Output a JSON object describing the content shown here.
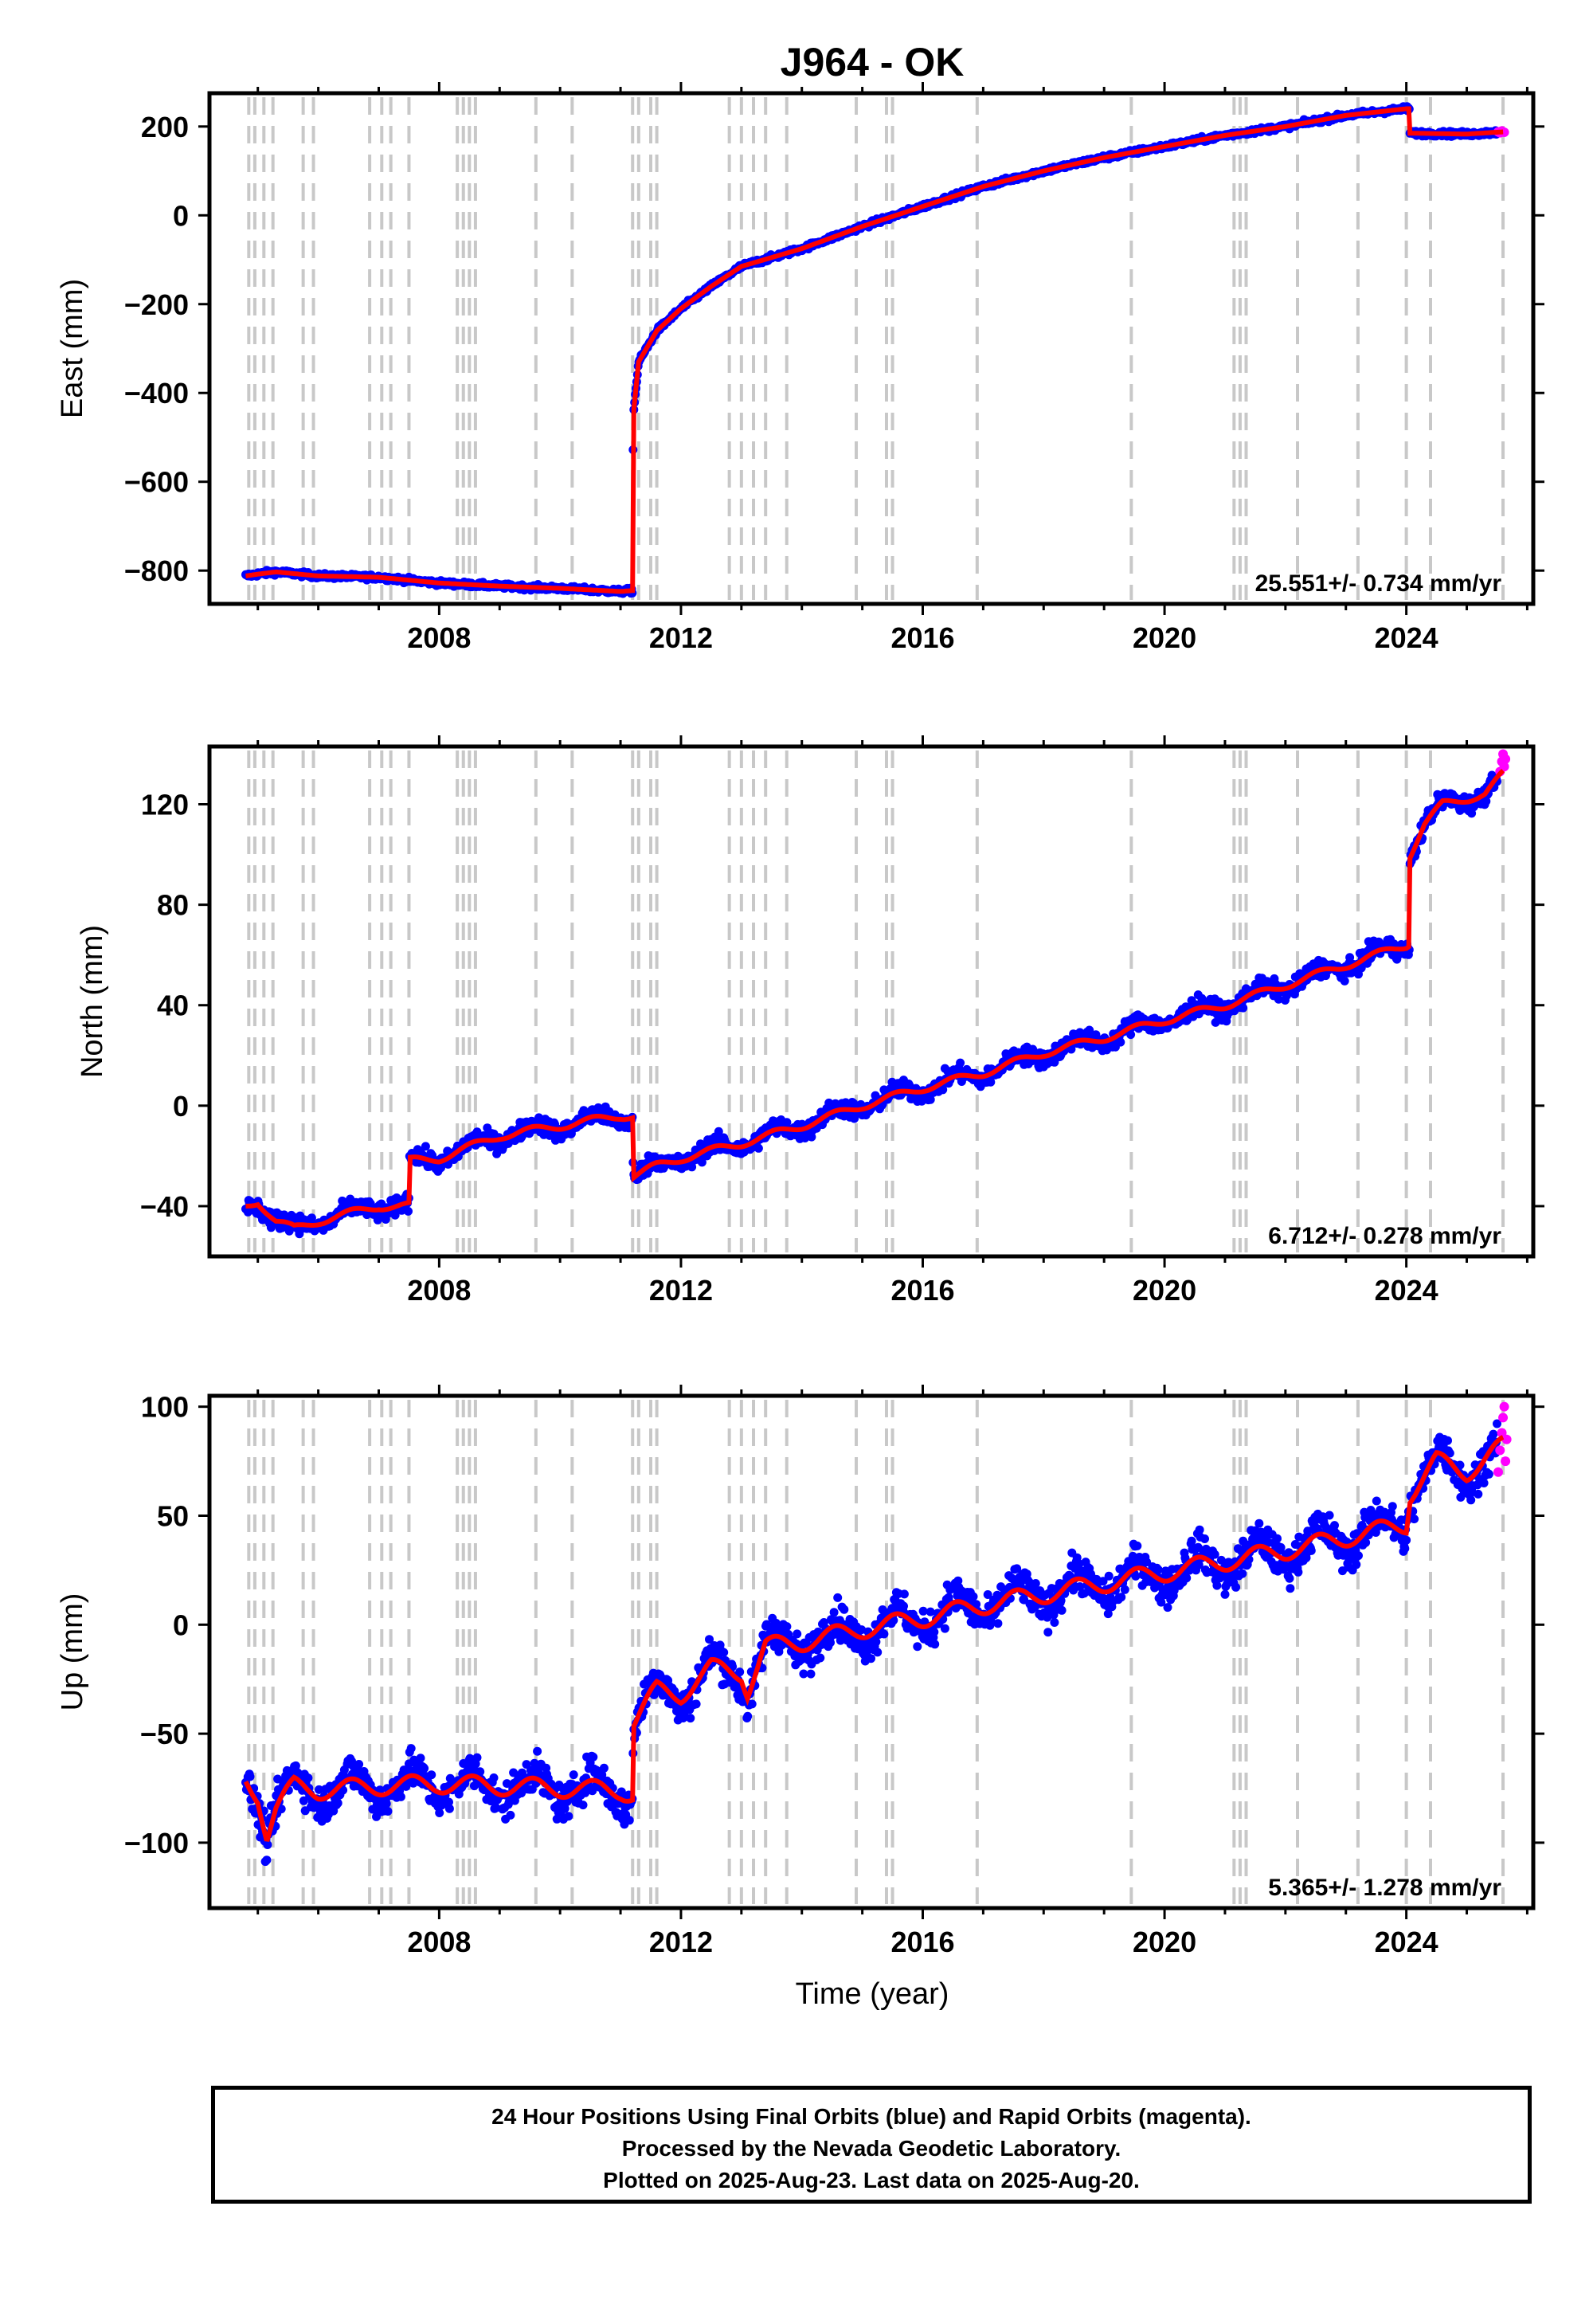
{
  "title": "J964 - OK",
  "xlabel": "Time (year)",
  "footer": {
    "line1": "24 Hour Positions Using Final Orbits (blue) and Rapid Orbits (magenta).",
    "line2": "Processed by the Nevada Geodetic Laboratory.",
    "line3": "Plotted on 2025-Aug-23. Last data on 2025-Aug-20."
  },
  "colors": {
    "final": "#0000ff",
    "rapid": "#ff00ff",
    "model": "#ff0000",
    "eventLine": "#c8c8c8"
  },
  "chart_data": {
    "type": "scatter",
    "x_range": [
      2004.2,
      2026.1
    ],
    "x_ticks": [
      2008,
      2012,
      2016,
      2020,
      2024
    ],
    "event_lines": [
      2004.85,
      2004.95,
      2005.1,
      2005.25,
      2005.75,
      2005.92,
      2006.85,
      2007.05,
      2007.2,
      2007.5,
      2008.3,
      2008.4,
      2008.5,
      2008.6,
      2009.6,
      2010.2,
      2011.2,
      2011.3,
      2011.5,
      2011.6,
      2012.8,
      2013.0,
      2013.2,
      2013.4,
      2013.75,
      2014.9,
      2015.4,
      2015.5,
      2016.9,
      2019.45,
      2021.15,
      2021.25,
      2021.35,
      2022.2,
      2023.2,
      2024.0,
      2024.4,
      2025.6
    ],
    "panels": [
      {
        "name": "east",
        "ylabel": "East (mm)",
        "ylim": [
          -875,
          275
        ],
        "y_ticks": [
          -800,
          -600,
          -400,
          -200,
          0,
          200
        ],
        "rate": "25.551+/- 0.734 mm/yr",
        "noise": 4,
        "model": [
          [
            2004.8,
            -812
          ],
          [
            2005.0,
            -808
          ],
          [
            2005.3,
            -803
          ],
          [
            2006.0,
            -812
          ],
          [
            2007.0,
            -815
          ],
          [
            2008.0,
            -828
          ],
          [
            2009.0,
            -835
          ],
          [
            2010.0,
            -840
          ],
          [
            2011.0,
            -847
          ],
          [
            2011.2,
            -845
          ],
          [
            2011.21,
            -450
          ],
          [
            2011.3,
            -330
          ],
          [
            2011.6,
            -260
          ],
          [
            2012.0,
            -210
          ],
          [
            2012.5,
            -160
          ],
          [
            2013.0,
            -115
          ],
          [
            2014.0,
            -75
          ],
          [
            2015.0,
            -25
          ],
          [
            2016.0,
            20
          ],
          [
            2017.0,
            65
          ],
          [
            2018.0,
            100
          ],
          [
            2019.0,
            130
          ],
          [
            2020.0,
            155
          ],
          [
            2021.0,
            180
          ],
          [
            2022.0,
            200
          ],
          [
            2023.0,
            225
          ],
          [
            2024.0,
            240
          ],
          [
            2024.05,
            240
          ],
          [
            2024.06,
            185
          ],
          [
            2025.0,
            183
          ],
          [
            2025.6,
            188
          ]
        ],
        "rapid": [
          [
            2025.52,
            188
          ],
          [
            2025.55,
            186
          ],
          [
            2025.58,
            190
          ],
          [
            2025.62,
            187
          ]
        ]
      },
      {
        "name": "north",
        "ylabel": "North (mm)",
        "ylim": [
          -60,
          143
        ],
        "y_ticks": [
          -40,
          0,
          40,
          80,
          120
        ],
        "rate": "6.712+/- 0.278 mm/yr",
        "noise": 2.5,
        "seasonal": 2.5,
        "model": [
          [
            2004.8,
            -40
          ],
          [
            2005.0,
            -38
          ],
          [
            2005.3,
            -46
          ],
          [
            2005.6,
            -49
          ],
          [
            2006.0,
            -46
          ],
          [
            2007.0,
            -40
          ],
          [
            2007.5,
            -40
          ],
          [
            2007.51,
            -22
          ],
          [
            2008.0,
            -21
          ],
          [
            2009.0,
            -12
          ],
          [
            2010.0,
            -8
          ],
          [
            2011.0,
            -4
          ],
          [
            2011.2,
            -4
          ],
          [
            2011.21,
            -28
          ],
          [
            2011.6,
            -24
          ],
          [
            2012.0,
            -21
          ],
          [
            2013.0,
            -15
          ],
          [
            2014.0,
            -8
          ],
          [
            2015.0,
            0
          ],
          [
            2016.0,
            7
          ],
          [
            2017.0,
            13
          ],
          [
            2018.0,
            21
          ],
          [
            2019.0,
            27
          ],
          [
            2020.0,
            34
          ],
          [
            2021.0,
            40
          ],
          [
            2022.0,
            48
          ],
          [
            2023.0,
            56
          ],
          [
            2024.0,
            64
          ],
          [
            2024.05,
            65
          ],
          [
            2024.06,
            100
          ],
          [
            2024.3,
            112
          ],
          [
            2024.6,
            120
          ],
          [
            2025.3,
            124
          ],
          [
            2025.6,
            132
          ]
        ],
        "rapid": [
          [
            2025.55,
            133
          ],
          [
            2025.58,
            137
          ],
          [
            2025.6,
            140
          ],
          [
            2025.62,
            135
          ],
          [
            2025.64,
            138
          ]
        ]
      },
      {
        "name": "up",
        "ylabel": "Up (mm)",
        "ylim": [
          -130,
          105
        ],
        "y_ticks": [
          -100,
          -50,
          0,
          50,
          100
        ],
        "rate": "5.365+/- 1.278 mm/yr",
        "noise": 6,
        "seasonal": 7,
        "model": [
          [
            2004.8,
            -72
          ],
          [
            2005.0,
            -78
          ],
          [
            2005.15,
            -96
          ],
          [
            2005.3,
            -84
          ],
          [
            2005.6,
            -74
          ],
          [
            2006.0,
            -76
          ],
          [
            2007.0,
            -74
          ],
          [
            2008.0,
            -73
          ],
          [
            2009.0,
            -74
          ],
          [
            2010.0,
            -75
          ],
          [
            2011.0,
            -76
          ],
          [
            2011.2,
            -78
          ],
          [
            2011.21,
            -45
          ],
          [
            2011.6,
            -30
          ],
          [
            2012.0,
            -32
          ],
          [
            2012.5,
            -20
          ],
          [
            2013.0,
            -22
          ],
          [
            2013.1,
            -30
          ],
          [
            2013.4,
            -10
          ],
          [
            2014.0,
            -8
          ],
          [
            2015.0,
            -2
          ],
          [
            2016.0,
            3
          ],
          [
            2017.0,
            9
          ],
          [
            2018.0,
            14
          ],
          [
            2019.0,
            19
          ],
          [
            2020.0,
            24
          ],
          [
            2021.0,
            29
          ],
          [
            2022.0,
            34
          ],
          [
            2023.0,
            40
          ],
          [
            2024.0,
            46
          ],
          [
            2024.06,
            60
          ],
          [
            2024.5,
            75
          ],
          [
            2025.0,
            70
          ],
          [
            2025.6,
            82
          ]
        ],
        "rapid": [
          [
            2025.52,
            70
          ],
          [
            2025.55,
            80
          ],
          [
            2025.58,
            88
          ],
          [
            2025.6,
            95
          ],
          [
            2025.62,
            100
          ],
          [
            2025.64,
            75
          ],
          [
            2025.66,
            85
          ]
        ]
      }
    ]
  }
}
